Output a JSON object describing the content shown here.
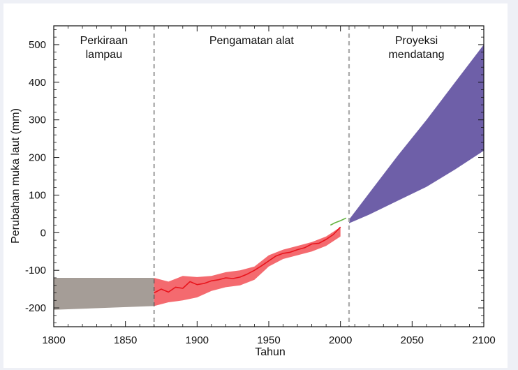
{
  "chart_data": {
    "type": "area",
    "xlabel": "Tahun",
    "ylabel": "Perubahan muka laut (mm)",
    "xlim": [
      1800,
      2100
    ],
    "ylim": [
      -250,
      550
    ],
    "x_ticks": [
      1800,
      1850,
      1900,
      1950,
      2000,
      2050,
      2100
    ],
    "y_ticks": [
      -200,
      -100,
      0,
      100,
      200,
      300,
      400,
      500
    ],
    "dividers": [
      1870,
      2006
    ],
    "regions": [
      {
        "label_lines": [
          "Perkiraan",
          "lampau"
        ],
        "x_center": 1835
      },
      {
        "label_lines": [
          "Pengamatan alat"
        ],
        "x_center": 1938
      },
      {
        "label_lines": [
          "Proyeksi",
          "mendatang"
        ],
        "x_center": 2053
      }
    ],
    "series": [
      {
        "kind": "band",
        "color": "#a59d97",
        "x": [
          1800,
          1870
        ],
        "lower": [
          -205,
          -195
        ],
        "upper": [
          -120,
          -120
        ]
      },
      {
        "kind": "band",
        "color": "#f46a6f",
        "x": [
          1870,
          1880,
          1890,
          1900,
          1910,
          1920,
          1930,
          1940,
          1950,
          1960,
          1970,
          1980,
          1990,
          2000
        ],
        "lower": [
          -195,
          -185,
          -180,
          -172,
          -155,
          -145,
          -140,
          -125,
          -90,
          -70,
          -60,
          -50,
          -35,
          -10
        ],
        "upper": [
          -120,
          -130,
          -115,
          -118,
          -115,
          -105,
          -100,
          -90,
          -60,
          -45,
          -35,
          -25,
          -10,
          15
        ]
      },
      {
        "kind": "line",
        "color": "#e8141c",
        "x": [
          1870,
          1875,
          1880,
          1885,
          1890,
          1895,
          1900,
          1905,
          1910,
          1915,
          1920,
          1925,
          1930,
          1935,
          1940,
          1945,
          1950,
          1955,
          1960,
          1965,
          1970,
          1975,
          1980,
          1985,
          1990,
          1995,
          2000
        ],
        "y": [
          -160,
          -150,
          -158,
          -145,
          -148,
          -130,
          -138,
          -135,
          -128,
          -125,
          -120,
          -122,
          -118,
          -110,
          -100,
          -88,
          -75,
          -62,
          -55,
          -52,
          -45,
          -40,
          -30,
          -28,
          -18,
          -5,
          15
        ]
      },
      {
        "kind": "line",
        "color": "#63b340",
        "x": [
          1993,
          1996,
          2000,
          2004
        ],
        "y": [
          20,
          26,
          32,
          39
        ]
      },
      {
        "kind": "band",
        "color": "#6e5fa8",
        "x": [
          2006,
          2020,
          2040,
          2060,
          2080,
          2100
        ],
        "lower": [
          25,
          48,
          85,
          122,
          168,
          218
        ],
        "upper": [
          35,
          105,
          205,
          300,
          400,
          500
        ]
      }
    ]
  }
}
